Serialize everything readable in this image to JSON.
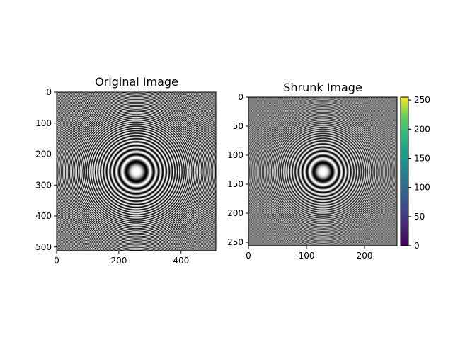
{
  "chart_data": [
    {
      "type": "heatmap",
      "title": "Original Image",
      "image_size": 512,
      "xlim": [
        0,
        512
      ],
      "ylim": [
        512,
        0
      ],
      "xticks": [
        0,
        200,
        400
      ],
      "yticks": [
        0,
        100,
        200,
        300,
        400,
        500
      ],
      "xtick_labels": [
        "0",
        "200",
        "400"
      ],
      "ytick_labels": [
        "0",
        "100",
        "200",
        "300",
        "400",
        "500"
      ],
      "colormap": "gray",
      "pattern": "concentric zone-plate rings"
    },
    {
      "type": "heatmap",
      "title": "Shrunk Image",
      "image_size": 256,
      "xlim": [
        0,
        256
      ],
      "ylim": [
        256,
        0
      ],
      "xticks": [
        0,
        100,
        200
      ],
      "yticks": [
        0,
        50,
        100,
        150,
        200,
        250
      ],
      "xtick_labels": [
        "0",
        "100",
        "200"
      ],
      "ytick_labels": [
        "0",
        "50",
        "100",
        "150",
        "200",
        "250"
      ],
      "colormap": "gray",
      "pattern": "concentric zone-plate rings",
      "colorbar": {
        "colormap": "viridis",
        "range": [
          0,
          255
        ],
        "ticks": [
          0,
          50,
          100,
          150,
          200,
          250
        ],
        "tick_labels": [
          "0",
          "50",
          "100",
          "150",
          "200",
          "250"
        ]
      }
    }
  ]
}
